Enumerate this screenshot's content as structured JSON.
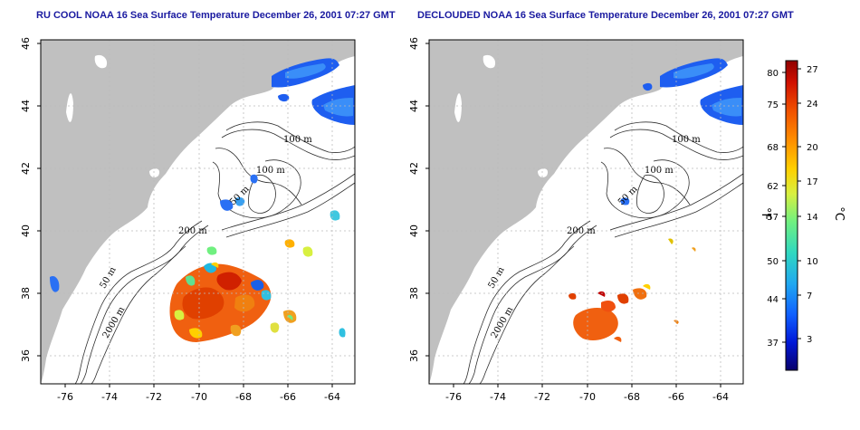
{
  "maps": [
    {
      "id": "left",
      "title": "RU COOL NOAA 16 Sea Surface Temperature December 26, 2001 07:27 GMT",
      "contour_labels": [
        "100 m",
        "100 m",
        "50 m",
        "200 m",
        "50 m",
        "2000 m"
      ]
    },
    {
      "id": "right",
      "title": "DECLOUDED NOAA 16 Sea Surface Temperature December 26, 2001 07:27 GMT",
      "contour_labels": [
        "100 m",
        "100 m",
        "50 m",
        "200 m",
        "50 m",
        "2000 m"
      ]
    }
  ],
  "axes": {
    "lon_ticks": [
      "-76",
      "-74",
      "-72",
      "-70",
      "-68",
      "-66",
      "-64"
    ],
    "lat_ticks": [
      "36",
      "38",
      "40",
      "42",
      "44",
      "46"
    ]
  },
  "colorbar": {
    "fahrenheit_ticks": [
      "80",
      "75",
      "68",
      "62",
      "57",
      "50",
      "44",
      "37"
    ],
    "celsius_ticks": [
      "27",
      "24",
      "20",
      "17",
      "14",
      "10",
      "7",
      "3"
    ],
    "fahrenheit_unit": "°F",
    "celsius_unit": "°C",
    "colors": [
      "#08006b",
      "#0018d8",
      "#1060ff",
      "#20a8f0",
      "#30d8c0",
      "#70f080",
      "#d8f040",
      "#ffd000",
      "#ff9000",
      "#f05000",
      "#d01000",
      "#900000"
    ]
  },
  "colors": {
    "land": "#c0c0c0",
    "title": "#1a1aa0",
    "grid": "#bbbbbb"
  }
}
